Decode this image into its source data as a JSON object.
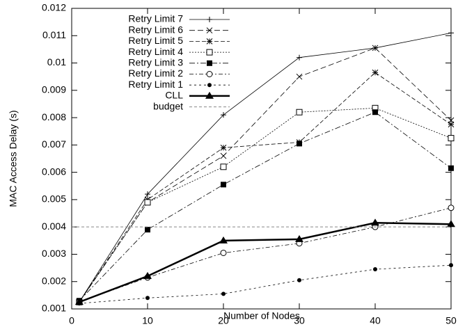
{
  "chart_data": {
    "type": "line",
    "xlabel": "Number of Nodes",
    "ylabel": "MAC Access Delay (s)",
    "x": [
      1,
      10,
      20,
      30,
      40,
      50
    ],
    "xlim": [
      0,
      50
    ],
    "xticks": [
      0,
      10,
      20,
      30,
      40,
      50
    ],
    "ylim": [
      0.001,
      0.012
    ],
    "yticks": [
      0.001,
      0.002,
      0.003,
      0.004,
      0.005,
      0.006,
      0.007,
      0.008,
      0.009,
      0.01,
      0.011,
      0.012
    ],
    "legend": "top-left",
    "series": [
      {
        "name": "Retry Limit 7",
        "color": "#000000",
        "dash": "none",
        "marker": "plus",
        "width": 0.8,
        "values": [
          0.00125,
          0.0052,
          0.0081,
          0.0102,
          0.01055,
          0.0111
        ]
      },
      {
        "name": "Retry Limit 6",
        "color": "#000000",
        "dash": "8,4",
        "marker": "cross",
        "width": 0.8,
        "values": [
          0.00125,
          0.0049,
          0.0066,
          0.0095,
          0.01055,
          0.0079
        ]
      },
      {
        "name": "Retry Limit 5",
        "color": "#000000",
        "dash": "6,3",
        "marker": "star",
        "width": 0.8,
        "values": [
          0.00125,
          0.005,
          0.0069,
          0.0071,
          0.00965,
          0.00775
        ]
      },
      {
        "name": "Retry Limit 4",
        "color": "#000000",
        "dash": "2,2",
        "marker": "open-square",
        "width": 0.8,
        "values": [
          0.00125,
          0.0049,
          0.0062,
          0.0082,
          0.00835,
          0.00725
        ]
      },
      {
        "name": "Retry Limit 3",
        "color": "#000000",
        "dash": "8,3,2,3",
        "marker": "filled-square",
        "width": 0.8,
        "values": [
          0.0013,
          0.0039,
          0.00555,
          0.00705,
          0.0082,
          0.00615
        ]
      },
      {
        "name": "Retry Limit 2",
        "color": "#000000",
        "dash": "6,3,2,3",
        "marker": "open-circle",
        "width": 0.8,
        "values": [
          0.00125,
          0.00215,
          0.00305,
          0.0034,
          0.004,
          0.0047
        ]
      },
      {
        "name": "Retry Limit 1",
        "color": "#000000",
        "dash": "3,4",
        "marker": "filled-circle",
        "width": 0.8,
        "values": [
          0.0012,
          0.0014,
          0.00155,
          0.00205,
          0.00245,
          0.0026
        ]
      },
      {
        "name": "CLL",
        "color": "#000000",
        "dash": "none",
        "marker": "triangle",
        "width": 2.5,
        "values": [
          0.00125,
          0.0022,
          0.0035,
          0.00355,
          0.00415,
          0.0041
        ]
      },
      {
        "name": "budget",
        "color": "#888888",
        "dash": "4,3",
        "marker": "none",
        "width": 1,
        "x": [
          0,
          50
        ],
        "values": [
          0.004,
          0.004
        ]
      }
    ]
  }
}
